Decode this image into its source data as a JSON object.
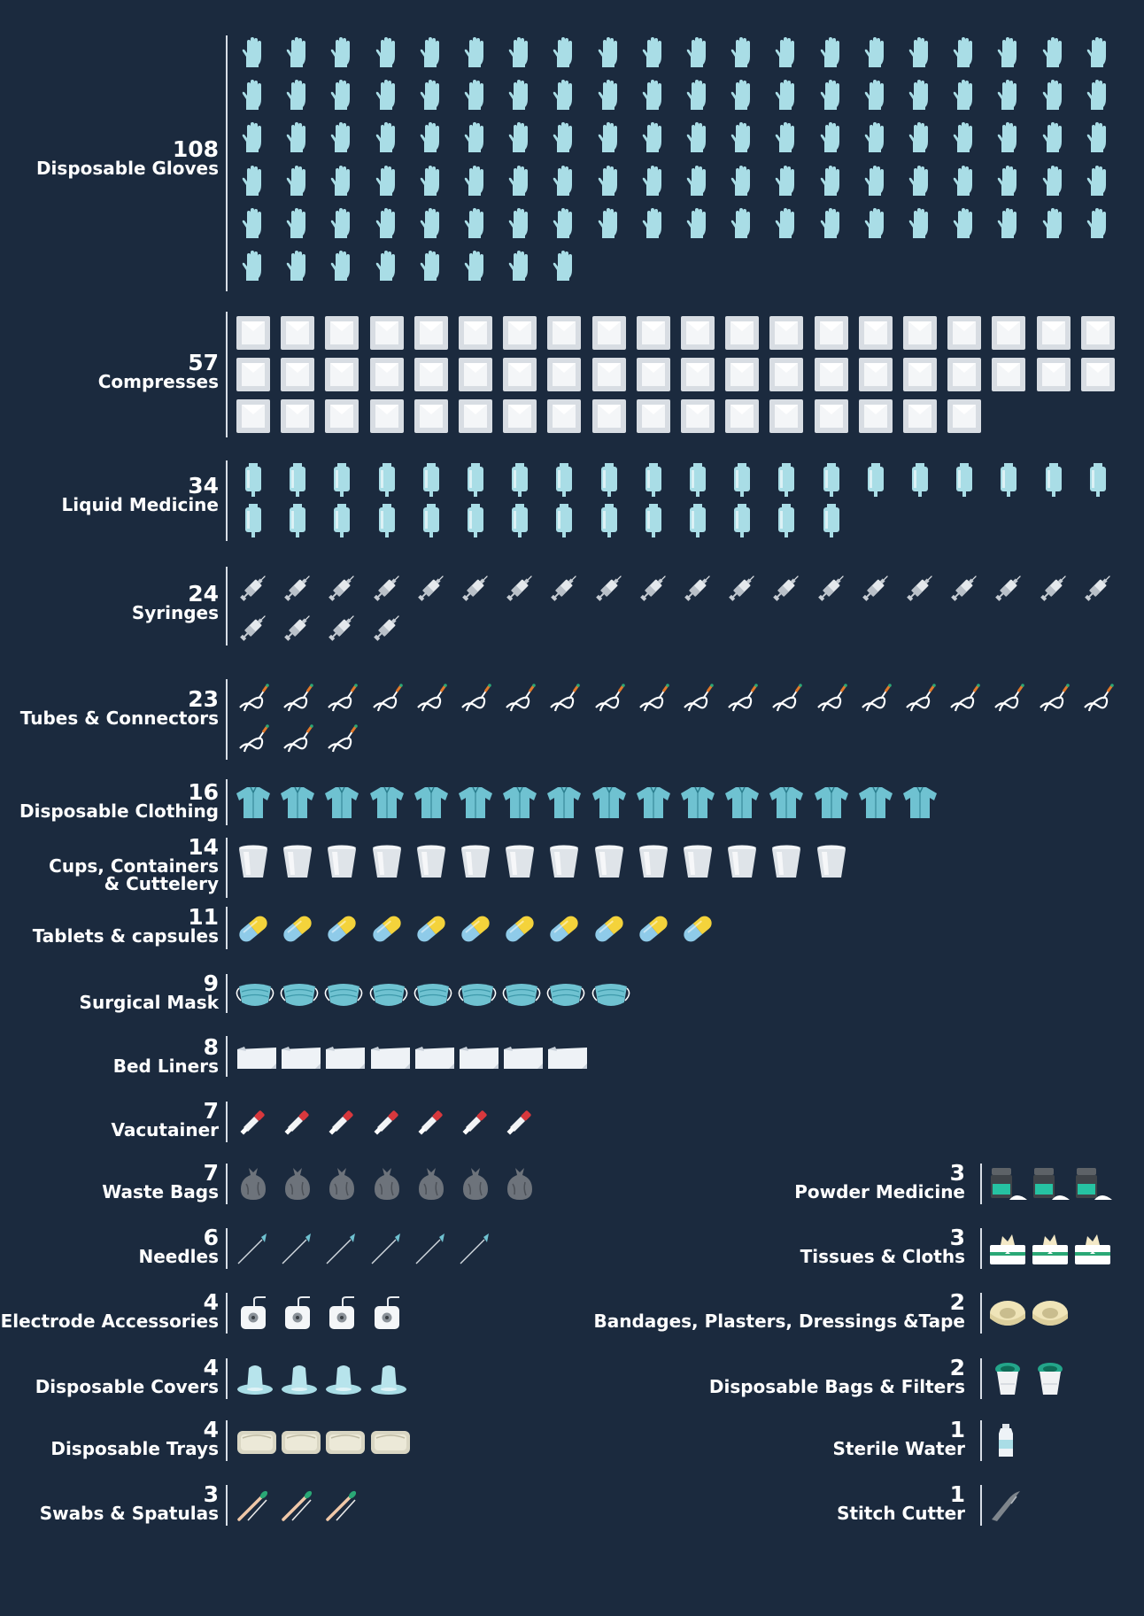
{
  "chart_data": {
    "type": "pictogram",
    "unit": "one icon per item",
    "left_column": [
      {
        "label": "Disposable Gloves",
        "count_text": "108",
        "value": 108,
        "icon": "glove-icon"
      },
      {
        "label": "Compresses",
        "count_text": "57",
        "value": 57,
        "icon": "compress-icon"
      },
      {
        "label": "Liquid Medicine",
        "count_text": "34",
        "value": 34,
        "icon": "iv-bag-icon"
      },
      {
        "label": "Syringes",
        "count_text": "24",
        "value": 24,
        "icon": "syringe-icon"
      },
      {
        "label": "Tubes & Connectors",
        "count_text": "23",
        "value": 23,
        "icon": "tube-icon"
      },
      {
        "label": "Disposable Clothing",
        "count_text": "16",
        "value": 16,
        "icon": "gown-icon"
      },
      {
        "label": "Cups, Containers\n& Cuttelery",
        "count_text": "14",
        "value": 14,
        "icon": "cup-icon"
      },
      {
        "label": "Tablets & capsules",
        "count_text": "11",
        "value": 11,
        "icon": "capsule-icon"
      },
      {
        "label": "Surgical Mask",
        "count_text": "9",
        "value": 9,
        "icon": "mask-icon"
      },
      {
        "label": "Bed Liners",
        "count_text": "8",
        "value": 8,
        "icon": "bed-liner-icon"
      },
      {
        "label": "Vacutainer",
        "count_text": "7",
        "value": 7,
        "icon": "vacutainer-icon"
      },
      {
        "label": "Waste Bags",
        "count_text": "7",
        "value": 7,
        "icon": "waste-bag-icon"
      },
      {
        "label": "Needles",
        "count_text": "6",
        "value": 6,
        "icon": "needle-icon"
      },
      {
        "label": "Electrode Accessories",
        "count_text": "4",
        "value": 4,
        "icon": "electrode-icon"
      },
      {
        "label": "Disposable Covers",
        "count_text": "4",
        "value": 4,
        "icon": "cover-icon"
      },
      {
        "label": "Disposable Trays",
        "count_text": "4",
        "value": 4,
        "icon": "tray-icon"
      },
      {
        "label": "Swabs & Spatulas",
        "count_text": "3",
        "value": 3,
        "icon": "swab-icon"
      }
    ],
    "right_column": [
      {
        "label": "Powder Medicine",
        "count_text": "3",
        "value": 3,
        "icon": "powder-jar-icon"
      },
      {
        "label": "Tissues & Cloths",
        "count_text": "3",
        "value": 3,
        "icon": "tissue-box-icon"
      },
      {
        "label": "Bandages, Plasters, Dressings &Tape",
        "count_text": "2",
        "value": 2,
        "icon": "tape-roll-icon"
      },
      {
        "label": "Disposable Bags & Filters",
        "count_text": "2",
        "value": 2,
        "icon": "filter-bag-icon"
      },
      {
        "label": "Sterile Water",
        "count_text": "1",
        "value": 1,
        "icon": "water-bottle-icon"
      },
      {
        "label": "Stitch Cutter",
        "count_text": "1",
        "value": 1,
        "icon": "stitch-cutter-icon"
      }
    ]
  }
}
